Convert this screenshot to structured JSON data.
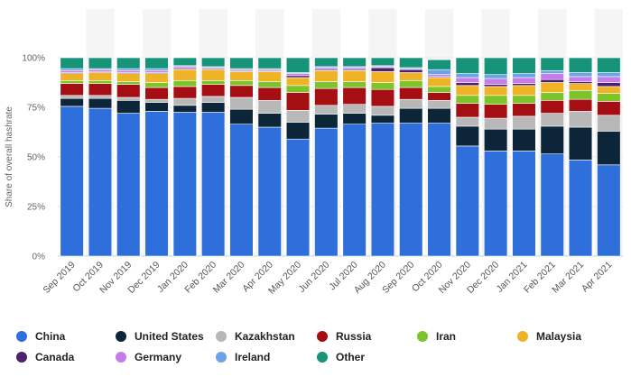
{
  "chart_data": {
    "type": "bar",
    "stacked": true,
    "ylabel": "Share of overall hashrate",
    "ylim": [
      0,
      100
    ],
    "yticks": [
      "0%",
      "25%",
      "50%",
      "75%",
      "100%"
    ],
    "categories": [
      "Sep 2019",
      "Oct 2019",
      "Nov 2019",
      "Dec 2019",
      "Jan 2020",
      "Feb 2020",
      "Mar 2020",
      "Apr 2020",
      "May 2020",
      "Jun 2020",
      "Jul 2020",
      "Aug 2020",
      "Sep 2020",
      "Oct 2020",
      "Nov 2020",
      "Dec 2020",
      "Jan 2021",
      "Feb 2021",
      "Mar 2021",
      "Apr 2021"
    ],
    "grid": true,
    "legend_position": "bottom",
    "series": [
      {
        "name": "China",
        "color": "#2e6fdb",
        "values": [
          75.5,
          74.5,
          72.0,
          73.0,
          72.5,
          72.5,
          66.5,
          65.0,
          59.0,
          64.5,
          66.5,
          67.0,
          67.0,
          67.0,
          55.5,
          53.0,
          53.0,
          51.5,
          48.5,
          46.0
        ]
      },
      {
        "name": "United States",
        "color": "#0d2538",
        "values": [
          4.0,
          5.0,
          6.5,
          4.5,
          3.5,
          5.0,
          7.5,
          7.0,
          8.5,
          7.0,
          5.5,
          4.0,
          7.5,
          7.5,
          10.0,
          11.0,
          11.0,
          14.0,
          16.5,
          17.0
        ]
      },
      {
        "name": "Kazakhstan",
        "color": "#b8b8b8",
        "values": [
          1.5,
          1.5,
          1.5,
          1.5,
          3.5,
          3.0,
          6.0,
          6.5,
          6.0,
          4.5,
          4.5,
          4.5,
          4.5,
          4.0,
          4.5,
          5.5,
          6.5,
          6.5,
          8.0,
          8.0
        ]
      },
      {
        "name": "Russia",
        "color": "#a50f14",
        "values": [
          6.0,
          6.0,
          6.5,
          6.0,
          6.0,
          6.0,
          6.0,
          6.5,
          9.0,
          8.5,
          8.5,
          8.5,
          6.0,
          4.0,
          7.0,
          7.0,
          6.5,
          6.5,
          6.0,
          7.0
        ]
      },
      {
        "name": "Iran",
        "color": "#7cc42a",
        "values": [
          1.5,
          1.5,
          1.5,
          2.5,
          3.0,
          2.0,
          2.5,
          3.0,
          3.5,
          3.5,
          3.0,
          3.5,
          3.5,
          3.0,
          4.0,
          4.5,
          4.0,
          4.0,
          4.5,
          4.0
        ]
      },
      {
        "name": "Malaysia",
        "color": "#f0b326",
        "values": [
          3.5,
          4.0,
          4.0,
          4.5,
          5.5,
          5.5,
          4.5,
          5.0,
          4.0,
          5.5,
          5.5,
          5.5,
          4.0,
          4.5,
          5.0,
          4.5,
          5.0,
          5.0,
          3.5,
          3.5
        ]
      },
      {
        "name": "Canada",
        "color": "#4b2170",
        "values": [
          0.5,
          0.5,
          0.5,
          0.5,
          0.5,
          0.5,
          0.5,
          0.5,
          1.0,
          0.5,
          0.5,
          2.0,
          1.5,
          0.5,
          1.5,
          1.0,
          1.0,
          1.5,
          1.0,
          2.0
        ]
      },
      {
        "name": "Germany",
        "color": "#c77de8",
        "values": [
          1.0,
          1.0,
          1.0,
          1.0,
          1.0,
          0.5,
          0.5,
          0.5,
          1.0,
          1.0,
          1.0,
          0.5,
          0.5,
          1.0,
          2.5,
          3.0,
          3.0,
          3.0,
          2.5,
          3.0
        ]
      },
      {
        "name": "Ireland",
        "color": "#6ba3e8",
        "values": [
          1.0,
          0.5,
          1.0,
          1.0,
          0.5,
          0.5,
          0.5,
          0.5,
          0.5,
          0.5,
          0.5,
          0.5,
          0.5,
          2.5,
          2.0,
          2.0,
          2.0,
          1.5,
          2.0,
          2.0
        ]
      },
      {
        "name": "Other",
        "color": "#17937a",
        "values": [
          5.5,
          5.5,
          5.5,
          5.5,
          4.0,
          4.5,
          5.5,
          5.5,
          7.5,
          4.5,
          4.5,
          4.0,
          5.0,
          5.0,
          8.0,
          8.5,
          8.0,
          6.5,
          7.5,
          7.5
        ]
      }
    ]
  }
}
